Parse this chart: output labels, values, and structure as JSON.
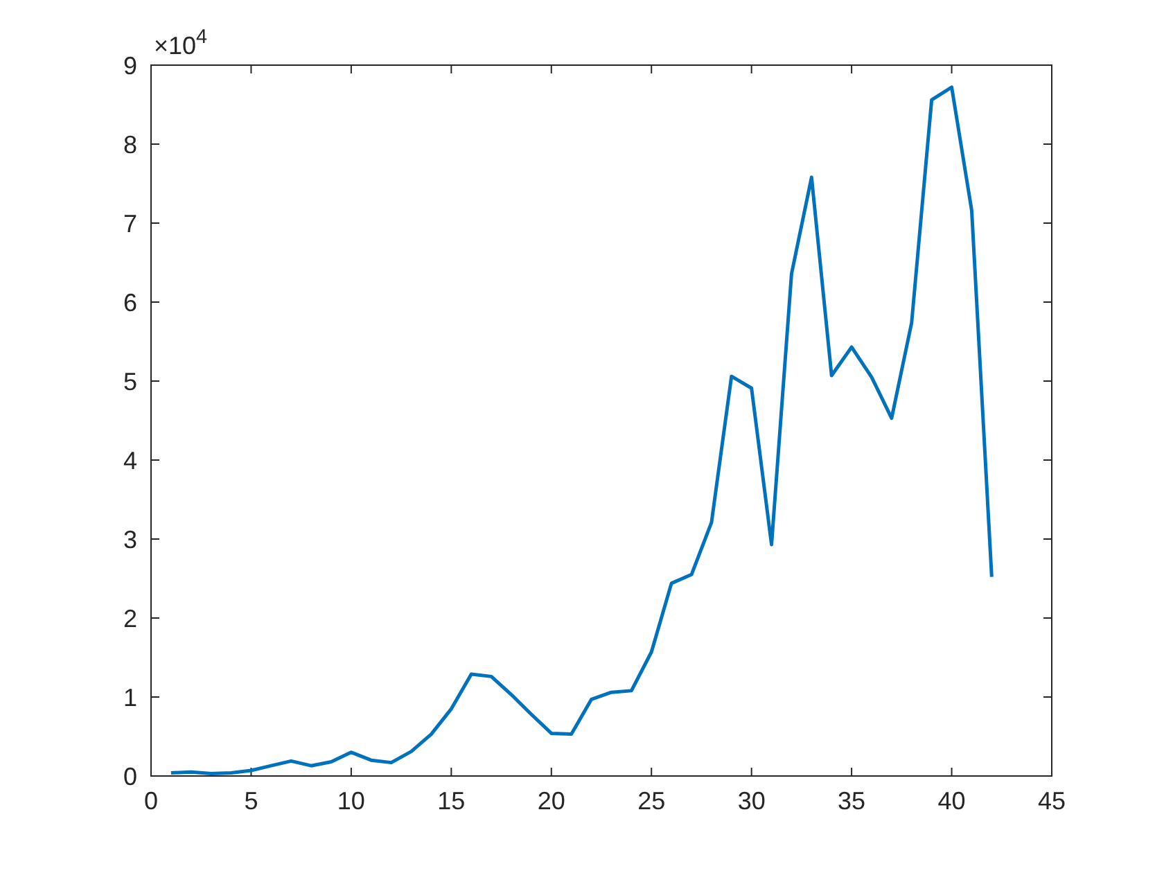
{
  "chart_data": {
    "type": "line",
    "x": [
      1,
      2,
      3,
      4,
      5,
      6,
      7,
      8,
      9,
      10,
      11,
      12,
      13,
      14,
      15,
      16,
      17,
      18,
      19,
      20,
      21,
      22,
      23,
      24,
      25,
      26,
      27,
      28,
      29,
      30,
      31,
      32,
      33,
      34,
      35,
      36,
      37,
      38,
      39,
      40,
      41,
      42
    ],
    "series": [
      {
        "color": "#0072bd",
        "values": [
          0.04,
          0.05,
          0.03,
          0.04,
          0.07,
          0.13,
          0.19,
          0.13,
          0.18,
          0.3,
          0.2,
          0.17,
          0.31,
          0.53,
          0.85,
          1.29,
          1.26,
          1.03,
          0.78,
          0.54,
          0.53,
          0.97,
          1.06,
          1.08,
          1.57,
          2.44,
          2.55,
          3.21,
          5.06,
          4.91,
          2.93,
          6.36,
          7.58,
          5.07,
          5.43,
          5.05,
          4.53,
          5.74,
          8.56,
          8.72,
          7.16,
          2.52
        ]
      }
    ],
    "xlim": [
      0,
      45
    ],
    "xticks": [
      0,
      5,
      10,
      15,
      20,
      25,
      30,
      35,
      40,
      45
    ],
    "ylim": [
      0,
      9
    ],
    "yticks": [
      0,
      1,
      2,
      3,
      4,
      5,
      6,
      7,
      8,
      9
    ],
    "annotations": [
      "×10$^{4}$"
    ],
    "grid": false,
    "marker": "none",
    "line_style": "solid"
  }
}
